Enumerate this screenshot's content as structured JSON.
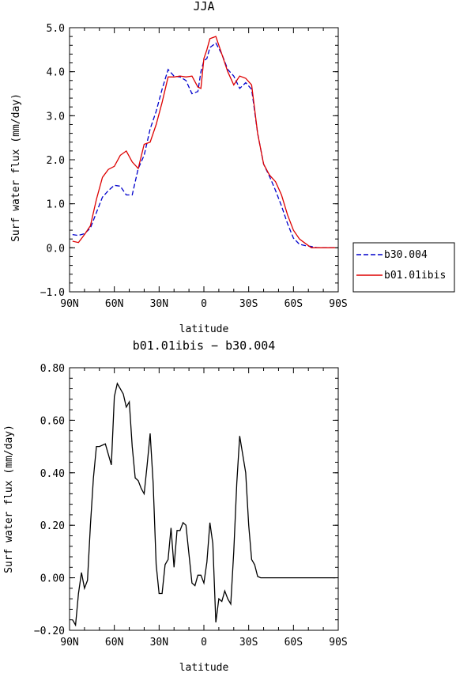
{
  "chart_data": [
    {
      "type": "line",
      "title": "JJA",
      "xlabel": "latitude",
      "ylabel": "Surf water flux (mm/day)",
      "xlim": [
        90,
        -90
      ],
      "ylim": [
        -1.0,
        5.0
      ],
      "xticks": [
        90,
        60,
        30,
        0,
        -30,
        -60,
        -90
      ],
      "xtick_labels": [
        "90N",
        "60N",
        "30N",
        "0",
        "30S",
        "60S",
        "90S"
      ],
      "yticks": [
        -1,
        0,
        1,
        2,
        3,
        4,
        5
      ],
      "ytick_labels": [
        "−1.0",
        "0.0",
        "1.0",
        "2.0",
        "3.0",
        "4.0",
        "5.0"
      ],
      "legend_position": "right",
      "series": [
        {
          "name": "b30.004",
          "color": "#0000cc",
          "dash": "dashed",
          "x": [
            88,
            84,
            80,
            76,
            72,
            68,
            64,
            60,
            56,
            52,
            48,
            44,
            40,
            36,
            32,
            28,
            24,
            20,
            16,
            12,
            8,
            4,
            2,
            0,
            -2,
            -4,
            -8,
            -12,
            -16,
            -20,
            -24,
            -28,
            -32,
            -36,
            -40,
            -44,
            -48,
            -52,
            -56,
            -60,
            -64,
            -68,
            -72,
            -76,
            -80,
            -84,
            -88
          ],
          "values": [
            0.3,
            0.28,
            0.32,
            0.45,
            0.8,
            1.15,
            1.3,
            1.42,
            1.4,
            1.2,
            1.2,
            1.8,
            2.1,
            2.7,
            3.1,
            3.6,
            4.05,
            3.9,
            3.88,
            3.8,
            3.5,
            3.55,
            4.0,
            4.25,
            4.3,
            4.55,
            4.65,
            4.4,
            4.05,
            3.9,
            3.62,
            3.75,
            3.6,
            2.6,
            1.9,
            1.62,
            1.3,
            0.95,
            0.55,
            0.22,
            0.08,
            0.05,
            0.03,
            0.0,
            0.0,
            0.0,
            0.0
          ]
        },
        {
          "name": "b01.01ibis",
          "color": "#dd0000",
          "dash": "solid",
          "x": [
            88,
            84,
            80,
            76,
            72,
            68,
            64,
            60,
            56,
            52,
            48,
            44,
            40,
            36,
            32,
            28,
            24,
            20,
            16,
            12,
            8,
            4,
            2,
            0,
            -2,
            -4,
            -8,
            -12,
            -16,
            -20,
            -24,
            -28,
            -32,
            -36,
            -40,
            -44,
            -48,
            -52,
            -56,
            -60,
            -64,
            -68,
            -72,
            -76,
            -80,
            -84,
            -88
          ],
          "values": [
            0.15,
            0.12,
            0.3,
            0.5,
            1.1,
            1.6,
            1.78,
            1.85,
            2.1,
            2.2,
            1.95,
            1.8,
            2.35,
            2.4,
            2.8,
            3.3,
            3.88,
            3.88,
            3.9,
            3.88,
            3.9,
            3.65,
            3.62,
            4.3,
            4.5,
            4.75,
            4.8,
            4.4,
            4.0,
            3.7,
            3.9,
            3.85,
            3.7,
            2.6,
            1.9,
            1.65,
            1.5,
            1.2,
            0.75,
            0.4,
            0.2,
            0.1,
            0.0,
            0.0,
            0.0,
            0.0,
            0.0
          ]
        }
      ]
    },
    {
      "type": "line",
      "title": "b01.01ibis − b30.004",
      "xlabel": "latitude",
      "ylabel": "Surf water flux (mm/day)",
      "xlim": [
        90,
        -90
      ],
      "ylim": [
        -0.2,
        0.8
      ],
      "xticks": [
        90,
        60,
        30,
        0,
        -30,
        -60,
        -90
      ],
      "xtick_labels": [
        "90N",
        "60N",
        "30N",
        "0",
        "30S",
        "60S",
        "90S"
      ],
      "yticks": [
        -0.2,
        0.0,
        0.2,
        0.4,
        0.6,
        0.8
      ],
      "ytick_labels": [
        "−0.20",
        "0.00",
        "0.20",
        "0.40",
        "0.60",
        "0.80"
      ],
      "series": [
        {
          "color": "#000000",
          "dash": "solid",
          "x": [
            88,
            86,
            84,
            82,
            80,
            78,
            76,
            74,
            72,
            70,
            66,
            62,
            60,
            58,
            56,
            54,
            52,
            50,
            48,
            46,
            44,
            42,
            40,
            38,
            36,
            34,
            32,
            30,
            28,
            26,
            24,
            22,
            20,
            18,
            16,
            14,
            12,
            10,
            8,
            6,
            4,
            2,
            0,
            -2,
            -4,
            -6,
            -8,
            -10,
            -12,
            -14,
            -16,
            -18,
            -20,
            -22,
            -24,
            -26,
            -28,
            -30,
            -32,
            -34,
            -36,
            -38,
            -40,
            -42,
            -44,
            -46,
            -48,
            -50,
            -52,
            -54,
            -56,
            -58,
            -60,
            -62,
            -64,
            -66,
            -68,
            -70,
            -72,
            -74,
            -76,
            -78,
            -80,
            -82,
            -84,
            -86,
            -88
          ],
          "values": [
            -0.16,
            -0.18,
            -0.06,
            0.02,
            -0.04,
            -0.01,
            0.2,
            0.38,
            0.5,
            0.5,
            0.51,
            0.43,
            0.69,
            0.74,
            0.72,
            0.7,
            0.65,
            0.67,
            0.5,
            0.38,
            0.37,
            0.34,
            0.32,
            0.43,
            0.55,
            0.36,
            0.05,
            -0.06,
            -0.06,
            0.05,
            0.07,
            0.19,
            0.04,
            0.18,
            0.18,
            0.21,
            0.2,
            0.09,
            -0.02,
            -0.03,
            0.01,
            0.01,
            -0.02,
            0.06,
            0.21,
            0.13,
            -0.17,
            -0.08,
            -0.09,
            -0.05,
            -0.08,
            -0.1,
            0.1,
            0.36,
            0.54,
            0.47,
            0.4,
            0.2,
            0.07,
            0.05,
            0.005,
            0.0,
            0.0,
            0.0,
            0.0,
            0.0,
            0.0,
            0.0,
            0.0,
            0.0,
            0.0,
            0.0,
            0.0,
            0.0,
            0.0,
            0.0,
            0.0,
            0.0,
            0.0,
            0.0,
            0.0,
            0.0,
            0.0,
            0.0,
            0.0,
            0.0,
            0.0
          ]
        }
      ]
    }
  ]
}
